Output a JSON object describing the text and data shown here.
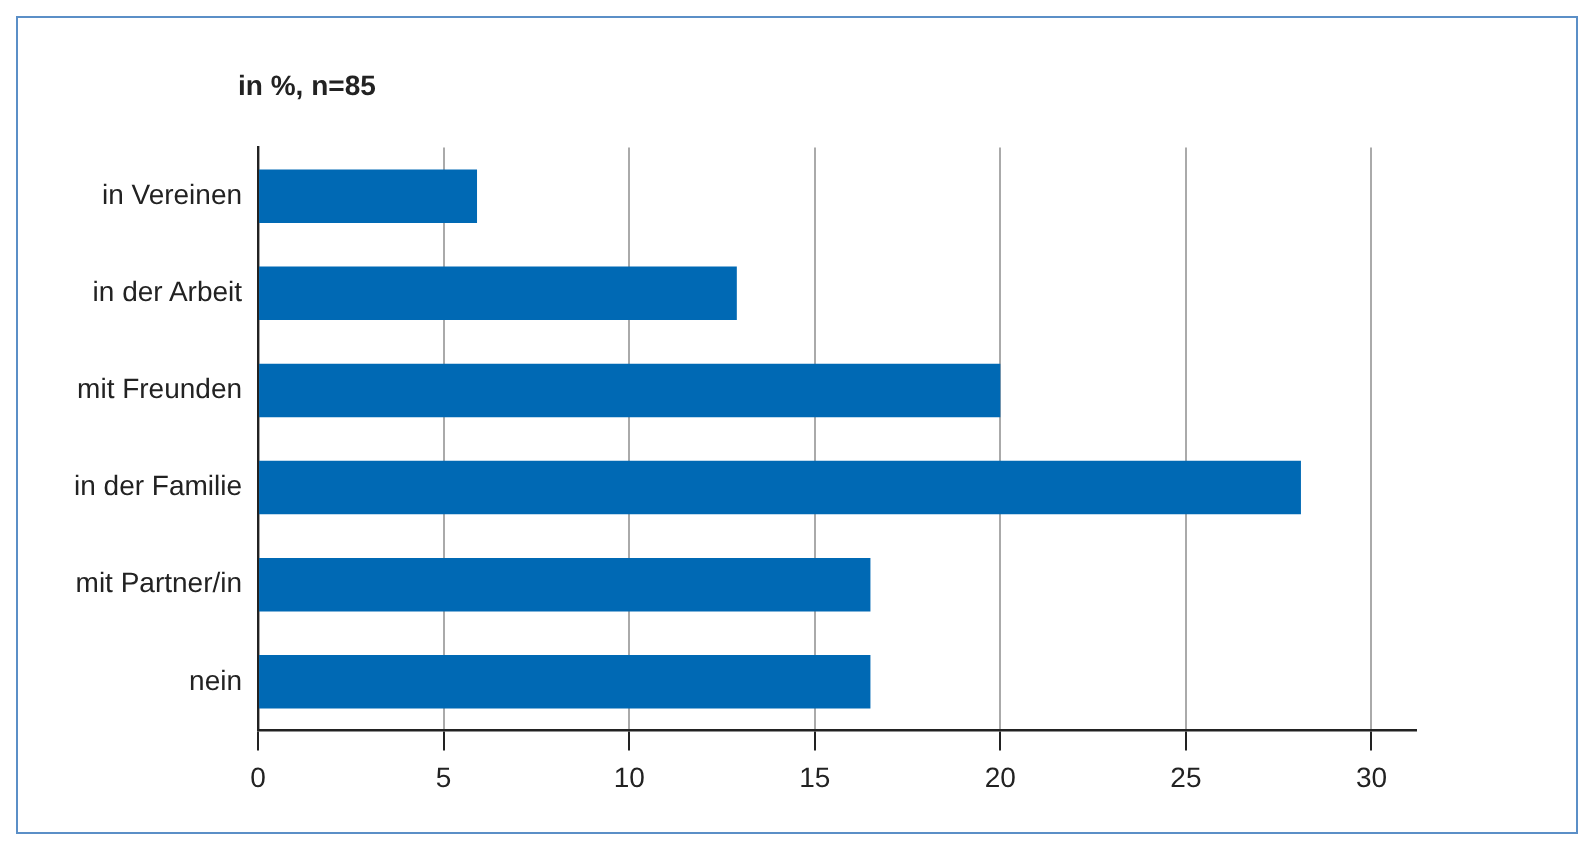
{
  "chart_data": {
    "type": "bar",
    "orientation": "horizontal",
    "title": "in %, n=85",
    "categories": [
      "in Vereinen",
      "in der Arbeit",
      "mit Freunden",
      "in der Familie",
      "mit Partner/in",
      "nein"
    ],
    "values": [
      5.9,
      12.9,
      20,
      28.1,
      16.5,
      16.5
    ],
    "color": "#0069b4",
    "xlim": [
      0,
      31.2
    ],
    "xticks": [
      0,
      5,
      10,
      15,
      20,
      25,
      30
    ],
    "grid": "x",
    "legend": false
  }
}
